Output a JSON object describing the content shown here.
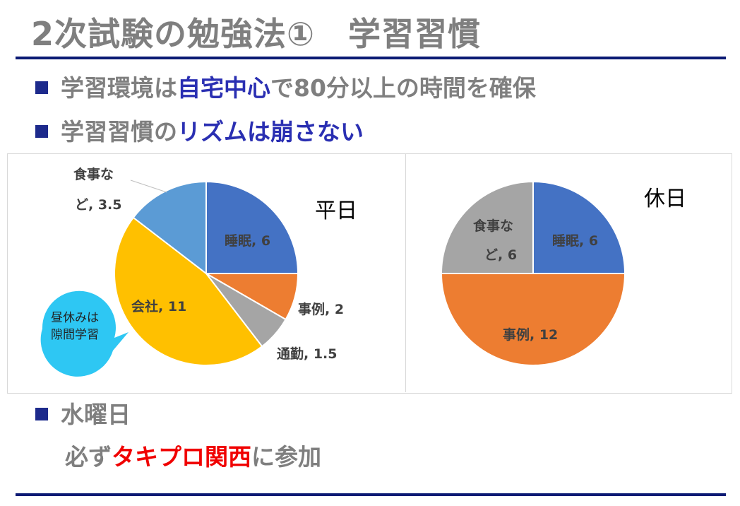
{
  "title": "2次試験の勉強法①　学習習慣",
  "bullets": [
    {
      "prefix": "学習環境は",
      "highlight": "自宅中心",
      "suffix": "で80分以上の時間を確保"
    },
    {
      "prefix": "学習習慣の",
      "highlight": "リズムは崩さない",
      "suffix": ""
    },
    {
      "prefix": "水曜日",
      "highlight": "",
      "suffix": ""
    }
  ],
  "wednesday_line": {
    "prefix": "必ず",
    "highlight": "タキプロ関西",
    "suffix": "に参加"
  },
  "callout": {
    "line1": "昼休みは",
    "line2": "隙間学習"
  },
  "colors": {
    "title": "#7f7f7f",
    "rule": "#0b1a74",
    "bullet_square": "#1d2a8c",
    "highlight_blue": "#2a2fb2",
    "highlight_red": "#f00000",
    "callout": "#2ec7f3"
  },
  "chart_data": [
    {
      "type": "pie",
      "title": "平日",
      "slices": [
        {
          "label": "睡眠",
          "value": 6,
          "color": "#4472c4"
        },
        {
          "label": "事例",
          "value": 2,
          "color": "#ed7d31"
        },
        {
          "label": "通勤",
          "value": 1.5,
          "color": "#a5a5a5"
        },
        {
          "label": "会社",
          "value": 11,
          "color": "#ffc000"
        },
        {
          "label": "食事など",
          "value": 3.5,
          "color": "#5b9bd5"
        }
      ]
    },
    {
      "type": "pie",
      "title": "休日",
      "slices": [
        {
          "label": "睡眠",
          "value": 6,
          "color": "#4472c4"
        },
        {
          "label": "事例",
          "value": 12,
          "color": "#ed7d31"
        },
        {
          "label": "食事など",
          "value": 6,
          "color": "#a5a5a5"
        }
      ]
    }
  ],
  "chart_labels": {
    "weekday": {
      "sleep": "睡眠, 6",
      "case": "事例, 2",
      "commute": "通勤, 1.5",
      "work": "会社, 11",
      "meal_a": "食事な",
      "meal_b": "ど, 3.5"
    },
    "holiday": {
      "sleep": "睡眠, 6",
      "case": "事例, 12",
      "meal_a": "食事な",
      "meal_b": "ど, 6"
    }
  }
}
